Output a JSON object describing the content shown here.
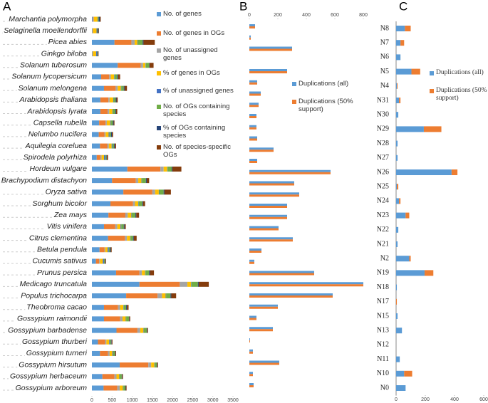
{
  "chart_data": [
    {
      "type": "stacked-barh",
      "panel": "A",
      "categories": [
        "Marchantia polymorpha",
        "Selaginella moellendorffii",
        "Picea abies",
        "Ginkgo biloba",
        "Solanum tuberosum",
        "Solanum lycopersicum",
        "Solanum melongena",
        "Arabidopsis thaliana",
        "Arabidopsis lyrata",
        "Capsella rubella",
        "Nelumbo nucifera",
        "Aquilegia coreluea",
        "Spirodela polyrhiza",
        "Hordeum vulgare",
        "Brachypodium distachyon",
        "Oryza sativa",
        "Sorghum bicolor",
        "Zea mays",
        "Vitis vinifera",
        "Citrus clementina",
        "Betula pendula",
        "Cucumis sativus",
        "Prunus persica",
        "Medicago truncatula",
        "Populus trichocarpa",
        "Theobroma cacao",
        "Gossypium raimondii",
        "Gossypium barbadense",
        "Gossypium thurberi",
        "Gossypium turneri",
        "Gossypium hirsutum",
        "Gossypium herbaceum",
        "Gossypium arboreum"
      ],
      "series": [
        {
          "name": "No. of genes",
          "color": "#5b9bd5",
          "values": [
            20,
            10,
            560,
            10,
            640,
            230,
            300,
            210,
            210,
            180,
            170,
            200,
            120,
            880,
            500,
            780,
            460,
            410,
            300,
            400,
            190,
            100,
            600,
            1180,
            850,
            300,
            300,
            610,
            150,
            200,
            690,
            260,
            290
          ]
        },
        {
          "name": "No. of genes in OGs",
          "color": "#ed7d31",
          "values": [
            15,
            5,
            420,
            5,
            570,
            200,
            290,
            200,
            180,
            160,
            140,
            180,
            90,
            820,
            590,
            720,
            560,
            420,
            280,
            420,
            120,
            80,
            580,
            1000,
            780,
            350,
            400,
            520,
            180,
            200,
            710,
            300,
            340
          ]
        },
        {
          "name": "No. of unassigned genes",
          "color": "#a5a5a5",
          "values": [
            15,
            10,
            80,
            10,
            60,
            40,
            50,
            30,
            40,
            30,
            30,
            40,
            30,
            80,
            60,
            70,
            50,
            60,
            50,
            50,
            20,
            20,
            60,
            190,
            110,
            50,
            60,
            70,
            30,
            40,
            70,
            50,
            60
          ]
        },
        {
          "name": "% of genes in OGs",
          "color": "#ffc000",
          "values": [
            90,
            90,
            70,
            80,
            60,
            80,
            80,
            90,
            80,
            85,
            75,
            70,
            60,
            90,
            80,
            90,
            80,
            90,
            80,
            80,
            60,
            70,
            80,
            90,
            90,
            80,
            80,
            80,
            70,
            70,
            80,
            70,
            80
          ]
        },
        {
          "name": "% of unassigned genes",
          "color": "#4472c4",
          "values": [
            10,
            10,
            10,
            20,
            10,
            10,
            10,
            10,
            10,
            15,
            20,
            20,
            30,
            10,
            10,
            10,
            10,
            10,
            20,
            10,
            30,
            30,
            10,
            10,
            10,
            10,
            10,
            10,
            20,
            20,
            10,
            10,
            10
          ]
        },
        {
          "name": "No. of OGs containing species",
          "color": "#70ad47",
          "values": [
            20,
            10,
            120,
            10,
            80,
            70,
            60,
            50,
            60,
            50,
            40,
            40,
            30,
            100,
            100,
            110,
            90,
            90,
            60,
            60,
            30,
            20,
            90,
            160,
            110,
            60,
            70,
            70,
            30,
            40,
            50,
            50,
            50
          ]
        },
        {
          "name": "% of OGs containing species",
          "color": "#264478",
          "values": [
            30,
            30,
            20,
            20,
            10,
            20,
            20,
            20,
            20,
            20,
            20,
            20,
            10,
            20,
            20,
            20,
            20,
            20,
            20,
            20,
            20,
            10,
            20,
            20,
            20,
            20,
            10,
            10,
            10,
            10,
            10,
            10,
            10
          ]
        },
        {
          "name": "No. of species-specific OGs",
          "color": "#843c0c",
          "values": [
            20,
            10,
            280,
            10,
            100,
            50,
            60,
            30,
            30,
            20,
            30,
            30,
            30,
            220,
            60,
            160,
            50,
            70,
            30,
            70,
            20,
            20,
            100,
            250,
            120,
            40,
            20,
            20,
            20,
            20,
            20,
            20,
            20
          ]
        }
      ],
      "xlim": [
        0,
        3500
      ],
      "xticks": [
        0,
        500,
        1000,
        1500,
        2000,
        2500,
        3000,
        3500
      ]
    },
    {
      "type": "grouped-barh",
      "panel": "B",
      "categories": [
        null,
        null,
        null,
        null,
        null,
        null,
        null,
        null,
        null,
        null,
        null,
        null,
        null,
        null,
        null,
        null,
        null,
        null,
        null,
        null,
        null,
        null,
        null,
        null,
        null,
        null,
        null,
        null,
        null,
        null,
        null,
        null,
        null
      ],
      "series": [
        {
          "name": "Duplications (all)",
          "color": "#5b9bd5",
          "values": [
            40,
            10,
            300,
            0,
            265,
            55,
            80,
            65,
            50,
            50,
            55,
            170,
            55,
            570,
            315,
            350,
            265,
            265,
            205,
            305,
            85,
            35,
            455,
            800,
            585,
            200,
            50,
            165,
            5,
            25,
            210,
            25,
            30
          ]
        },
        {
          "name": "Duplications (50% support)",
          "color": "#ed7d31",
          "values": [
            40,
            10,
            300,
            0,
            265,
            55,
            80,
            65,
            50,
            50,
            55,
            170,
            55,
            570,
            315,
            350,
            265,
            265,
            205,
            305,
            85,
            35,
            455,
            800,
            585,
            200,
            50,
            165,
            5,
            25,
            210,
            25,
            30
          ]
        }
      ],
      "xlim": [
        0,
        800
      ],
      "xticks": [
        0,
        200,
        400,
        600,
        800
      ]
    },
    {
      "type": "stacked-barh",
      "panel": "C",
      "categories": [
        "N8",
        "N7",
        "N6",
        "N5",
        "N4",
        "N31",
        "N30",
        "N29",
        "N28",
        "N27",
        "N26",
        "N25",
        "N24",
        "N23",
        "N22",
        "N21",
        "N2",
        "N19",
        "N18",
        "N17",
        "N15",
        "N13",
        "N12",
        "N11",
        "N10",
        "N0"
      ],
      "series": [
        {
          "name": "Duplications (all)",
          "color": "#5b9bd5",
          "values": [
            60,
            30,
            30,
            105,
            5,
            20,
            15,
            190,
            10,
            10,
            380,
            5,
            20,
            65,
            15,
            10,
            90,
            195,
            5,
            0,
            10,
            40,
            0,
            25,
            55,
            65
          ]
        },
        {
          "name": "Duplications (50% support)",
          "color": "#ed7d31",
          "values": [
            40,
            25,
            0,
            60,
            5,
            10,
            0,
            120,
            0,
            0,
            40,
            10,
            10,
            25,
            0,
            0,
            10,
            60,
            0,
            5,
            0,
            0,
            0,
            0,
            55,
            0
          ]
        }
      ],
      "xlim": [
        0,
        600
      ],
      "xticks": [
        0,
        200,
        400,
        600
      ]
    }
  ]
}
